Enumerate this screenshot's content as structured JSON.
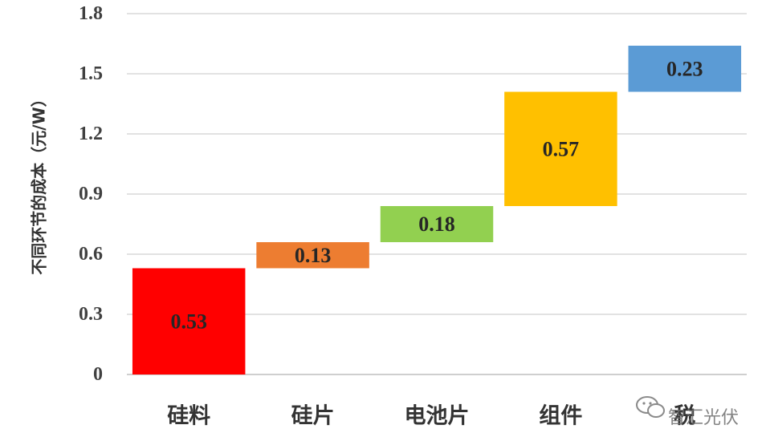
{
  "chart_data": {
    "type": "bar",
    "variant": "waterfall",
    "categories": [
      "硅料",
      "硅片",
      "电池片",
      "组件",
      "税"
    ],
    "values": [
      0.53,
      0.13,
      0.18,
      0.57,
      0.23
    ],
    "value_labels": [
      "0.53",
      "0.13",
      "0.18",
      "0.57",
      "0.23"
    ],
    "colors": [
      "#ff0000",
      "#ed7d31",
      "#92d050",
      "#ffc000",
      "#5b9bd5"
    ],
    "ylabel": "不同环节的成本（元/W）",
    "xlabel": "",
    "ylim": [
      0,
      1.8
    ],
    "yticks": [
      0,
      0.3,
      0.6,
      0.9,
      1.2,
      1.5,
      1.8
    ],
    "ytick_labels": [
      "0",
      "0.3",
      "0.6",
      "0.9",
      "1.2",
      "1.5",
      "1.8"
    ],
    "grid": true
  },
  "watermark": {
    "icon": "wechat-icon",
    "text": "智汇光伏"
  }
}
